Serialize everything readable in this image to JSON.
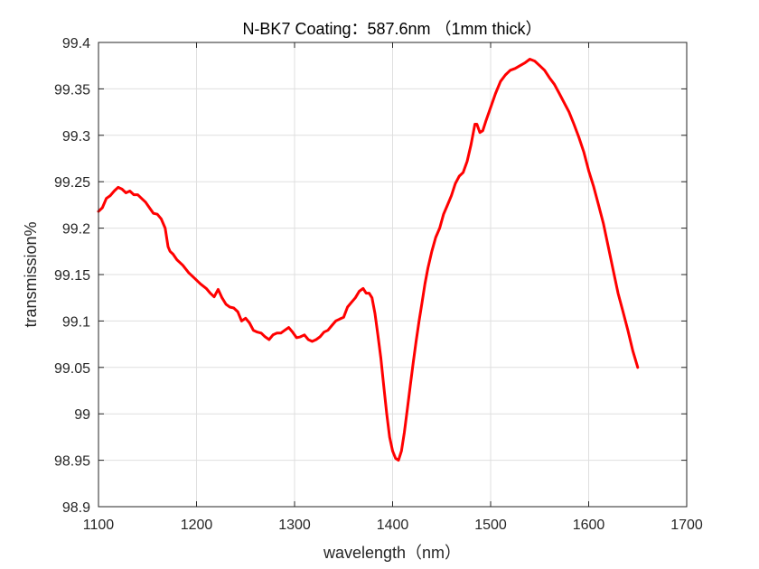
{
  "chart_data": {
    "type": "line",
    "title": "N-BK7 Coating：587.6nm （1mm thick）",
    "xlabel": "wavelength（nm）",
    "ylabel": "transmission%",
    "xlim": [
      1100,
      1700
    ],
    "ylim": [
      98.9,
      99.4
    ],
    "x_ticks": [
      1100,
      1200,
      1300,
      1400,
      1500,
      1600,
      1700
    ],
    "x_tick_labels": [
      "1100",
      "1200",
      "1300",
      "1400",
      "1500",
      "1600",
      "1700"
    ],
    "y_ticks": [
      98.9,
      98.95,
      99.0,
      99.05,
      99.1,
      99.15,
      99.2,
      99.25,
      99.3,
      99.35,
      99.4
    ],
    "y_tick_labels": [
      "98.9",
      "98.95",
      "99",
      "99.05",
      "99.1",
      "99.15",
      "99.2",
      "99.25",
      "99.3",
      "99.35",
      "99.4"
    ],
    "grid": true,
    "legend": "none",
    "series": [
      {
        "color": "#ff0000",
        "x": [
          1100,
          1104,
          1108,
          1112,
          1116,
          1120,
          1124,
          1128,
          1132,
          1136,
          1140,
          1144,
          1148,
          1152,
          1156,
          1160,
          1164,
          1168,
          1171,
          1173,
          1176,
          1180,
          1186,
          1192,
          1198,
          1204,
          1210,
          1214,
          1218,
          1222,
          1226,
          1230,
          1234,
          1238,
          1242,
          1246,
          1250,
          1254,
          1258,
          1262,
          1266,
          1270,
          1274,
          1278,
          1282,
          1286,
          1290,
          1294,
          1298,
          1302,
          1306,
          1310,
          1314,
          1318,
          1322,
          1326,
          1330,
          1334,
          1338,
          1342,
          1346,
          1350,
          1354,
          1358,
          1362,
          1366,
          1370,
          1373,
          1376,
          1379,
          1382,
          1385,
          1388,
          1391,
          1394,
          1397,
          1400,
          1403,
          1406,
          1409,
          1412,
          1415,
          1418,
          1421,
          1424,
          1427,
          1430,
          1433,
          1436,
          1440,
          1444,
          1448,
          1452,
          1456,
          1460,
          1464,
          1468,
          1472,
          1476,
          1480,
          1484,
          1486,
          1489,
          1492,
          1495,
          1500,
          1505,
          1510,
          1515,
          1520,
          1525,
          1530,
          1535,
          1540,
          1545,
          1550,
          1555,
          1560,
          1565,
          1570,
          1575,
          1580,
          1585,
          1590,
          1595,
          1600,
          1605,
          1610,
          1615,
          1620,
          1625,
          1630,
          1635,
          1640,
          1645,
          1650
        ],
        "y": [
          99.218,
          99.222,
          99.232,
          99.235,
          99.24,
          99.244,
          99.242,
          99.238,
          99.24,
          99.236,
          99.236,
          99.232,
          99.228,
          99.222,
          99.216,
          99.215,
          99.21,
          99.2,
          99.18,
          99.175,
          99.172,
          99.166,
          99.16,
          99.152,
          99.146,
          99.14,
          99.135,
          99.13,
          99.126,
          99.134,
          99.125,
          99.118,
          99.115,
          99.114,
          99.11,
          99.1,
          99.103,
          99.098,
          99.09,
          99.088,
          99.087,
          99.083,
          99.08,
          99.085,
          99.087,
          99.087,
          99.09,
          99.093,
          99.088,
          99.082,
          99.083,
          99.085,
          99.08,
          99.078,
          99.08,
          99.083,
          99.088,
          99.09,
          99.095,
          99.1,
          99.102,
          99.104,
          99.115,
          99.12,
          99.125,
          99.132,
          99.135,
          99.13,
          99.13,
          99.125,
          99.108,
          99.085,
          99.06,
          99.03,
          99.0,
          98.975,
          98.96,
          98.952,
          98.95,
          98.96,
          98.98,
          99.005,
          99.03,
          99.055,
          99.078,
          99.1,
          99.12,
          99.14,
          99.157,
          99.175,
          99.19,
          99.2,
          99.215,
          99.225,
          99.235,
          99.248,
          99.256,
          99.26,
          99.272,
          99.29,
          99.312,
          99.312,
          99.303,
          99.305,
          99.315,
          99.33,
          99.345,
          99.358,
          99.365,
          99.37,
          99.372,
          99.375,
          99.378,
          99.382,
          99.38,
          99.375,
          99.37,
          99.362,
          99.355,
          99.345,
          99.335,
          99.325,
          99.312,
          99.298,
          99.282,
          99.262,
          99.245,
          99.225,
          99.205,
          99.18,
          99.155,
          99.13,
          99.11,
          99.09,
          99.068,
          99.05
        ]
      }
    ]
  }
}
